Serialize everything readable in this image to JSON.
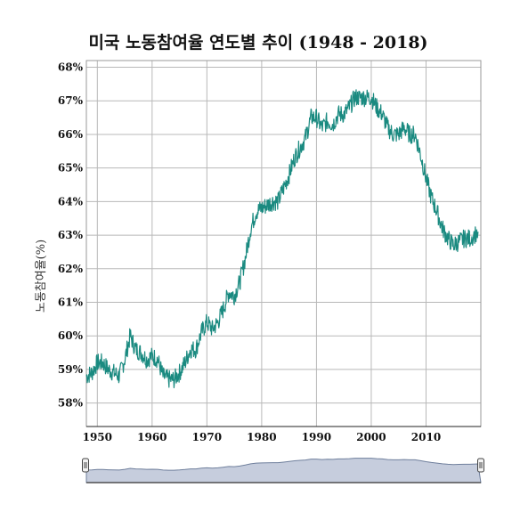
{
  "chart_data": {
    "type": "line",
    "title": "미국 노동참여율 연도별 추이 (1948 - 2018)",
    "xlabel": "",
    "ylabel": "노동참여율(%)",
    "xlim": [
      1948,
      2020
    ],
    "ylim": [
      57.3,
      68.2
    ],
    "x_ticks": [
      1950,
      1960,
      1970,
      1980,
      1990,
      2000,
      2010
    ],
    "x_tick_labels": [
      "1950",
      "1960",
      "1970",
      "1980",
      "1990",
      "2000",
      "2010"
    ],
    "y_ticks": [
      58,
      59,
      60,
      61,
      62,
      63,
      64,
      65,
      66,
      67,
      68
    ],
    "y_tick_labels": [
      "58%",
      "59%",
      "60%",
      "61%",
      "62%",
      "63%",
      "64%",
      "65%",
      "66%",
      "67%",
      "68%"
    ],
    "grid": true,
    "has_range_navigator": true,
    "series": [
      {
        "color": "#1a8a80",
        "x": [
          1948,
          1949,
          1950,
          1951,
          1952,
          1953,
          1954,
          1955,
          1956,
          1957,
          1958,
          1959,
          1960,
          1961,
          1962,
          1963,
          1964,
          1965,
          1966,
          1967,
          1968,
          1969,
          1970,
          1971,
          1972,
          1973,
          1974,
          1975,
          1976,
          1977,
          1978,
          1979,
          1980,
          1981,
          1982,
          1983,
          1984,
          1985,
          1986,
          1987,
          1988,
          1989,
          1990,
          1991,
          1992,
          1993,
          1994,
          1995,
          1996,
          1997,
          1998,
          1999,
          2000,
          2001,
          2002,
          2003,
          2004,
          2005,
          2006,
          2007,
          2008,
          2009,
          2010,
          2011,
          2012,
          2013,
          2014,
          2015,
          2016,
          2017,
          2018,
          2019.5
        ],
        "values": [
          58.8,
          58.9,
          59.2,
          59.2,
          59.0,
          58.9,
          58.8,
          59.3,
          60.0,
          59.6,
          59.5,
          59.3,
          59.4,
          59.3,
          58.8,
          58.7,
          58.7,
          58.9,
          59.2,
          59.6,
          59.6,
          60.1,
          60.4,
          60.2,
          60.4,
          60.8,
          61.3,
          61.2,
          61.6,
          62.3,
          63.2,
          63.7,
          63.8,
          63.9,
          64.0,
          64.0,
          64.4,
          64.8,
          65.3,
          65.6,
          65.9,
          66.5,
          66.5,
          66.2,
          66.4,
          66.3,
          66.6,
          66.6,
          66.8,
          67.1,
          67.1,
          67.1,
          67.1,
          66.8,
          66.6,
          66.2,
          66.0,
          66.0,
          66.2,
          66.0,
          66.0,
          65.4,
          64.7,
          64.1,
          63.7,
          63.2,
          62.9,
          62.7,
          62.8,
          62.9,
          62.9,
          63.1
        ]
      }
    ]
  }
}
